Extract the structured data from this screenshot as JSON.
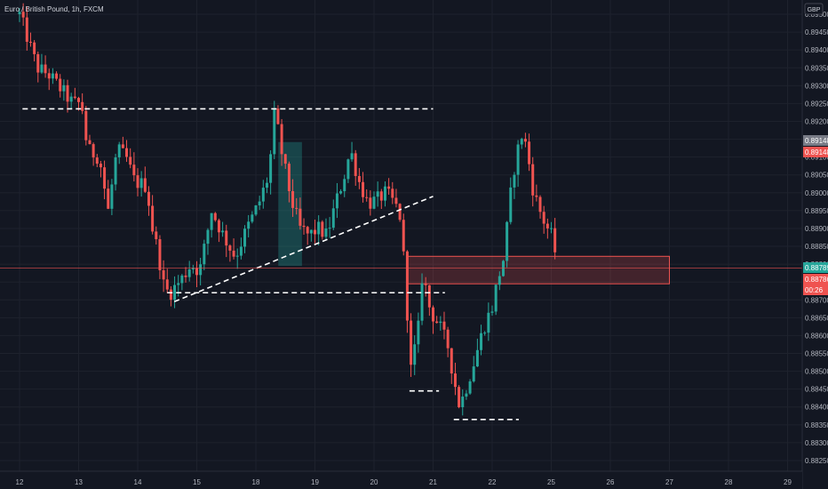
{
  "header": {
    "symbol_title": "Euro / British Pound, 1h, FXCM"
  },
  "currency_button": "GBP",
  "colors": {
    "background": "#131722",
    "grid": "#1e222d",
    "up": "#26a69a",
    "down": "#ef5350",
    "drawing": "#ffffff",
    "price_line": "#ef5350"
  },
  "price_tags": [
    {
      "text": "0.89148",
      "color": "#787b86",
      "value": 0.89148
    },
    {
      "text": "0.89148",
      "color": "#ef5350",
      "value": 0.89148
    },
    {
      "text": "0.88789",
      "color": "#26a69a",
      "value": 0.88789
    },
    {
      "text": "0.88786",
      "color": "#ef5350",
      "value": 0.88786
    },
    {
      "text": "00:26",
      "color": "#ef5350",
      "value": 0.88756
    }
  ],
  "chart_data": {
    "type": "candlestick",
    "ylim": [
      0.8823,
      0.8952
    ],
    "y_ticks": [
      "0.89500",
      "0.89450",
      "0.89400",
      "0.89350",
      "0.89300",
      "0.89250",
      "0.89200",
      "0.89150",
      "0.89100",
      "0.89050",
      "0.89000",
      "0.88950",
      "0.88900",
      "0.88850",
      "0.88800",
      "0.88750",
      "0.88700",
      "0.88650",
      "0.88600",
      "0.88550",
      "0.88500",
      "0.88450",
      "0.88400",
      "0.88350",
      "0.88300",
      "0.88250"
    ],
    "x_ticks": [
      {
        "label": "12",
        "x": 0
      },
      {
        "label": "13",
        "x": 1
      },
      {
        "label": "14",
        "x": 2
      },
      {
        "label": "15",
        "x": 3
      },
      {
        "label": "18",
        "x": 4
      },
      {
        "label": "19",
        "x": 5
      },
      {
        "label": "20",
        "x": 6
      },
      {
        "label": "21",
        "x": 7
      },
      {
        "label": "22",
        "x": 8
      },
      {
        "label": "25",
        "x": 9
      },
      {
        "label": "26",
        "x": 10
      },
      {
        "label": "27",
        "x": 11
      },
      {
        "label": "28",
        "x": 12
      },
      {
        "label": "29",
        "x": 13
      }
    ],
    "path": [
      [
        0.0,
        0.895
      ],
      [
        0.1,
        0.8945
      ],
      [
        0.3,
        0.8935
      ],
      [
        0.5,
        0.8933
      ],
      [
        0.75,
        0.8928
      ],
      [
        0.9,
        0.8925
      ],
      [
        1.05,
        0.8925
      ],
      [
        1.15,
        0.8912
      ],
      [
        1.35,
        0.891
      ],
      [
        1.5,
        0.8895
      ],
      [
        1.65,
        0.8912
      ],
      [
        1.8,
        0.891
      ],
      [
        1.95,
        0.8903
      ],
      [
        2.15,
        0.8902
      ],
      [
        2.25,
        0.889
      ],
      [
        2.35,
        0.8883
      ],
      [
        2.45,
        0.8873
      ],
      [
        2.55,
        0.8872
      ],
      [
        2.75,
        0.8876
      ],
      [
        2.9,
        0.888
      ],
      [
        3.05,
        0.8878
      ],
      [
        3.25,
        0.8895
      ],
      [
        3.45,
        0.8888
      ],
      [
        3.65,
        0.8882
      ],
      [
        3.85,
        0.889
      ],
      [
        4.05,
        0.8897
      ],
      [
        4.22,
        0.8905
      ],
      [
        4.32,
        0.8923
      ],
      [
        4.45,
        0.891
      ],
      [
        4.6,
        0.8898
      ],
      [
        4.75,
        0.889
      ],
      [
        4.9,
        0.8888
      ],
      [
        5.05,
        0.889
      ],
      [
        5.2,
        0.8888
      ],
      [
        5.35,
        0.8897
      ],
      [
        5.5,
        0.8905
      ],
      [
        5.6,
        0.8912
      ],
      [
        5.75,
        0.8903
      ],
      [
        5.9,
        0.8897
      ],
      [
        6.05,
        0.8898
      ],
      [
        6.2,
        0.89
      ],
      [
        6.35,
        0.8897
      ],
      [
        6.45,
        0.8893
      ],
      [
        6.5,
        0.8882
      ],
      [
        6.55,
        0.887
      ],
      [
        6.62,
        0.885
      ],
      [
        6.75,
        0.8862
      ],
      [
        6.82,
        0.8878
      ],
      [
        6.95,
        0.8867
      ],
      [
        7.1,
        0.8863
      ],
      [
        7.25,
        0.8857
      ],
      [
        7.35,
        0.8848
      ],
      [
        7.45,
        0.884
      ],
      [
        7.55,
        0.8845
      ],
      [
        7.7,
        0.8853
      ],
      [
        7.85,
        0.8862
      ],
      [
        8.0,
        0.8868
      ],
      [
        8.1,
        0.8876
      ],
      [
        8.2,
        0.8882
      ],
      [
        8.3,
        0.8898
      ],
      [
        8.4,
        0.891
      ],
      [
        8.5,
        0.8916
      ],
      [
        8.58,
        0.8913
      ],
      [
        8.7,
        0.89
      ],
      [
        8.85,
        0.8893
      ],
      [
        9.0,
        0.8888
      ],
      [
        9.1,
        0.8881
      ]
    ],
    "drawings": {
      "horizontal_lines": [
        {
          "from_x": 0.05,
          "to_x": 7.0,
          "y": 0.89235
        },
        {
          "from_x": 2.5,
          "to_x": 7.2,
          "y": 0.8872
        },
        {
          "from_x": 6.6,
          "to_x": 7.1,
          "y": 0.88445
        },
        {
          "from_x": 7.35,
          "to_x": 8.45,
          "y": 0.88365
        }
      ],
      "trend_line": {
        "x1": 2.62,
        "y1": 0.88695,
        "x2": 7.0,
        "y2": 0.8899
      },
      "boxes": [
        {
          "x1": 4.38,
          "x2": 4.78,
          "y_top": 0.89142,
          "y_bottom": 0.88795,
          "color": "#26a69a"
        },
        {
          "x1": 6.55,
          "x2": 11.0,
          "y_top": 0.88822,
          "y_bottom": 0.88745,
          "color": "#ef5350"
        }
      ],
      "price_line": 0.88789
    }
  }
}
